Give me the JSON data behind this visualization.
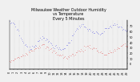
{
  "title": "Milwaukee Weather Outdoor Humidity\nvs Temperature\nEvery 5 Minutes",
  "title_fontsize": 3.5,
  "background_color": "#f0f0f0",
  "plot_bg_color": "#f0f0f0",
  "grid_color": "#aaaaaa",
  "humidity_color": "#0000dd",
  "temp_color": "#dd0000",
  "tick_fontsize": 2.5,
  "title_color": "#000000",
  "ylim_left": [
    0,
    100
  ],
  "ylim_right": [
    -10,
    80
  ],
  "n_points": 120,
  "seed": 7
}
